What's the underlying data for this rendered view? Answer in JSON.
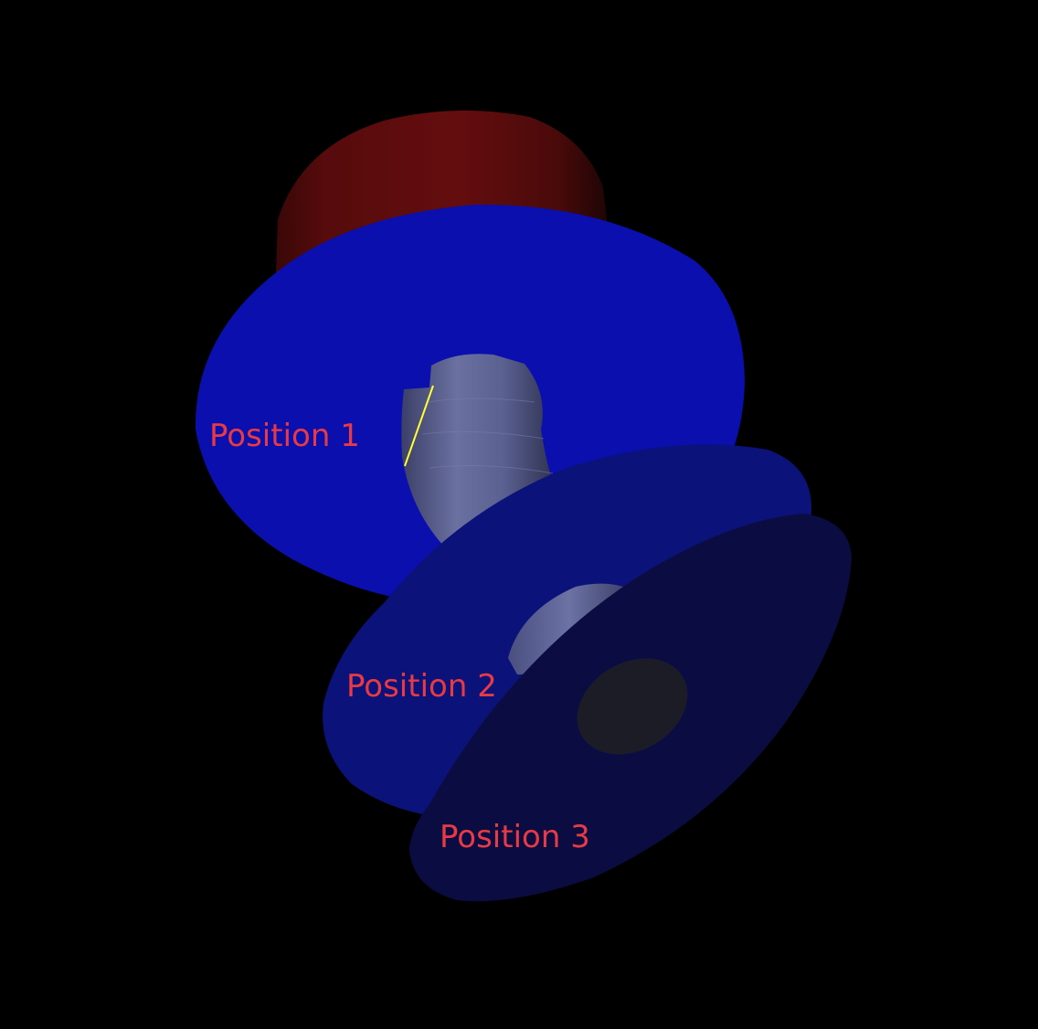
{
  "colors": {
    "background": "#000000",
    "cylinder_red": "#5e0c0d",
    "cylinder_red_dark": "#2a0606",
    "disc_1": "#0a0fae",
    "disc_2": "#0b137a",
    "disc_3": "#0b0d42",
    "tube": "#5a6192",
    "hole": "#1c1c26",
    "highlight_line": "#ffff33",
    "label": "#e83a45"
  },
  "labels": {
    "position_1": "Position 1",
    "position_2": "Position 2",
    "position_3": "Position 3"
  }
}
